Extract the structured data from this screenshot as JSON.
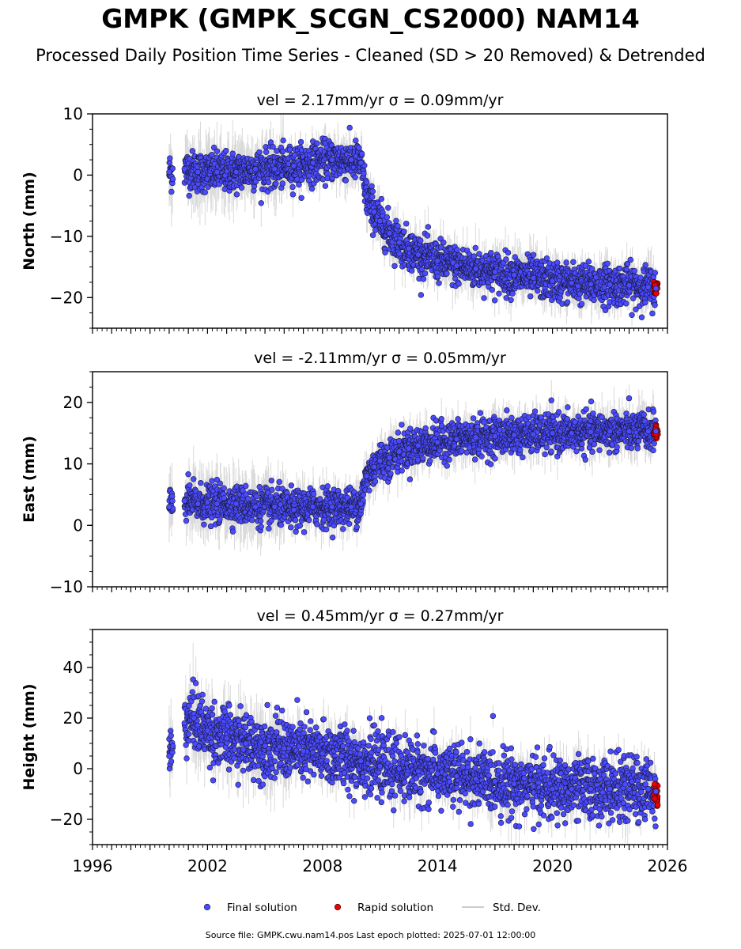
{
  "title": "GMPK (GMPK_SCGN_CS2000) NAM14",
  "subtitle": "Processed Daily Position Time Series - Cleaned (SD > 20 Removed) & Detrended",
  "footer": "Source file: GMPK.cwu.nam14.pos  Last epoch plotted: 2025-07-01 12:00:00",
  "colors": {
    "final": "#4a4aff",
    "rapid": "#ee0000",
    "stddev": "#bbbbbb",
    "marker_edge": "#1a1a3a"
  },
  "chart_data": [
    {
      "type": "scatter",
      "panel": "north",
      "title": "vel = 2.17mm/yr   σ = 0.09mm/yr",
      "ylabel": "North (mm)",
      "xlim": [
        1996,
        2026
      ],
      "ylim": [
        -25,
        10
      ],
      "yticks": [
        10,
        0,
        -10,
        -20
      ],
      "series": [
        {
          "name": "Final solution",
          "x": [
            2000.0,
            2000.8,
            2001.5,
            2002.5,
            2003.5,
            2004.5,
            2005.5,
            2006.5,
            2007.5,
            2008.5,
            2009.5,
            2010.0,
            2010.3,
            2010.7,
            2011.0,
            2011.5,
            2012.0,
            2012.5,
            2013.0,
            2014.0,
            2015.0,
            2016.0,
            2017.0,
            2018.0,
            2019.0,
            2020.0,
            2021.0,
            2022.0,
            2023.0,
            2024.0,
            2025.0,
            2025.4
          ],
          "y": [
            0.5,
            1.0,
            0.5,
            0.5,
            0.5,
            1.0,
            1.0,
            1.5,
            2.0,
            2.5,
            2.5,
            2.0,
            -3.5,
            -6.0,
            -7.5,
            -9.5,
            -11.0,
            -12.0,
            -13.0,
            -14.0,
            -14.8,
            -15.3,
            -15.8,
            -16.3,
            -16.8,
            -17.3,
            -17.6,
            -17.8,
            -17.9,
            -18.0,
            -18.3,
            -18.5
          ]
        },
        {
          "name": "Rapid solution",
          "x": [
            2025.3,
            2025.4,
            2025.5
          ],
          "y": [
            -18.0,
            -18.5,
            -18.2
          ]
        }
      ]
    },
    {
      "type": "scatter",
      "panel": "east",
      "title": "vel = -2.11mm/yr   σ = 0.05mm/yr",
      "ylabel": "East (mm)",
      "xlim": [
        1996,
        2026
      ],
      "ylim": [
        -10,
        25
      ],
      "yticks": [
        20,
        10,
        0,
        -10
      ],
      "series": [
        {
          "name": "Final solution",
          "x": [
            2000.0,
            2000.8,
            2001.5,
            2002.5,
            2003.5,
            2004.5,
            2005.5,
            2006.5,
            2007.5,
            2008.5,
            2009.5,
            2010.0,
            2010.3,
            2010.7,
            2011.0,
            2011.5,
            2012.0,
            2012.5,
            2013.0,
            2014.0,
            2015.0,
            2016.0,
            2017.0,
            2018.0,
            2019.0,
            2020.0,
            2021.0,
            2022.0,
            2023.0,
            2024.0,
            2025.0,
            2025.4
          ],
          "y": [
            3.0,
            4.0,
            3.5,
            3.5,
            3.5,
            3.0,
            3.0,
            2.5,
            3.0,
            3.0,
            3.0,
            3.5,
            8.0,
            9.5,
            10.5,
            11.0,
            12.0,
            12.5,
            13.0,
            13.5,
            14.0,
            14.3,
            14.5,
            14.7,
            14.8,
            15.0,
            15.0,
            15.2,
            15.3,
            15.3,
            15.3,
            15.3
          ]
        },
        {
          "name": "Rapid solution",
          "x": [
            2025.3,
            2025.4,
            2025.5
          ],
          "y": [
            14.5,
            15.5,
            15.0
          ]
        }
      ]
    },
    {
      "type": "scatter",
      "panel": "height",
      "title": "vel = 0.45mm/yr   σ = 0.27mm/yr",
      "ylabel": "Height (mm)",
      "xlim": [
        1996,
        2026
      ],
      "ylim": [
        -30,
        55
      ],
      "yticks": [
        40,
        20,
        0,
        -20
      ],
      "xticks": [
        1996,
        2002,
        2008,
        2014,
        2020,
        2026
      ],
      "series": [
        {
          "name": "Final solution",
          "x": [
            2000.0,
            2000.8,
            2001.3,
            2002.0,
            2003.0,
            2004.0,
            2005.0,
            2006.0,
            2007.0,
            2008.0,
            2009.0,
            2010.0,
            2011.0,
            2012.0,
            2013.0,
            2014.0,
            2015.0,
            2016.0,
            2017.0,
            2018.0,
            2019.0,
            2020.0,
            2021.0,
            2022.0,
            2023.0,
            2024.0,
            2025.0,
            2025.4
          ],
          "y": [
            5,
            18,
            20,
            15,
            12,
            10,
            9,
            8,
            7,
            6,
            5,
            3,
            1,
            0,
            -1,
            -2,
            -3,
            -4,
            -5,
            -6,
            -7,
            -8,
            -8,
            -8,
            -8,
            -8,
            -8,
            -9
          ]
        },
        {
          "name": "Rapid solution",
          "x": [
            2025.3,
            2025.4,
            2025.5
          ],
          "y": [
            -10,
            -8,
            -12
          ]
        }
      ]
    }
  ],
  "legend": {
    "placement": "bottom-center",
    "items": [
      {
        "label": "Final solution"
      },
      {
        "label": "Rapid solution"
      },
      {
        "label": "Std. Dev."
      }
    ]
  }
}
